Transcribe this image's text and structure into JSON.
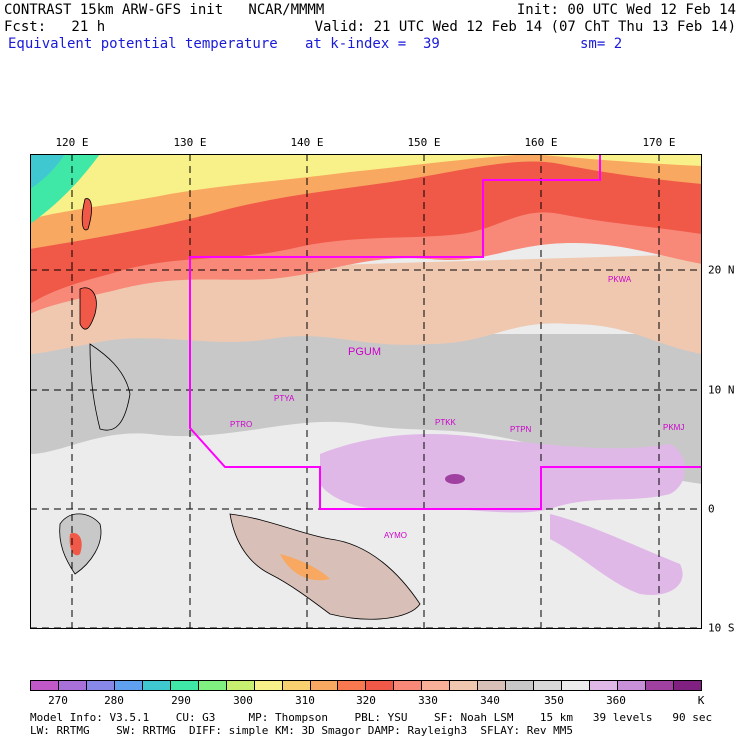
{
  "header": {
    "line1_left": "CONTRAST 15km ARW-GFS init   NCAR/MMMM",
    "line1_right": "Init: 00 UTC Wed 12 Feb 14",
    "fcst_label": "Fcst:   21 h",
    "valid": "Valid: 21 UTC Wed 12 Feb 14 (07 ChT Thu 13 Feb 14)",
    "field": "Equivalent potential temperature",
    "level": "at k-index =  39",
    "sm": "sm= 2"
  },
  "map": {
    "lon_labels": [
      "120 E",
      "130 E",
      "140 E",
      "150 E",
      "160 E",
      "170 E"
    ],
    "lat_labels": [
      "20 N",
      "10 N",
      "0",
      "10 S"
    ],
    "stations": [
      "PGUM",
      "PTYA",
      "PTRO",
      "PTKK",
      "PTPN",
      "PKWA",
      "PKMJ",
      "AYMO"
    ],
    "domain_outline_color": "#ff00ff"
  },
  "colorbar": {
    "colors": [
      "#c058c8",
      "#a870d8",
      "#8888e8",
      "#60a0f0",
      "#40c8d0",
      "#40e8a8",
      "#80f080",
      "#c8f070",
      "#f8f088",
      "#f8d070",
      "#f8a860",
      "#f87850",
      "#f05848",
      "#f88878",
      "#f8b098",
      "#f0c8b0",
      "#d8c0b8",
      "#c8c8c8",
      "#d8d8d8",
      "#ececec",
      "#e0b8e8",
      "#c890d8",
      "#a040a0",
      "#802080"
    ],
    "tick_labels": [
      "270",
      "280",
      "290",
      "300",
      "310",
      "320",
      "330",
      "340",
      "350",
      "360",
      "K"
    ]
  },
  "footer": {
    "line1": "Model Info: V3.5.1    CU: G3     MP: Thompson    PBL: YSU    SF: Noah LSM    15 km   39 levels   90 sec",
    "line2": "LW: RRTMG    SW: RRTMG  DIFF: simple KM: 3D Smagor DAMP: Rayleigh3  SFLAY: Rev MM5"
  }
}
